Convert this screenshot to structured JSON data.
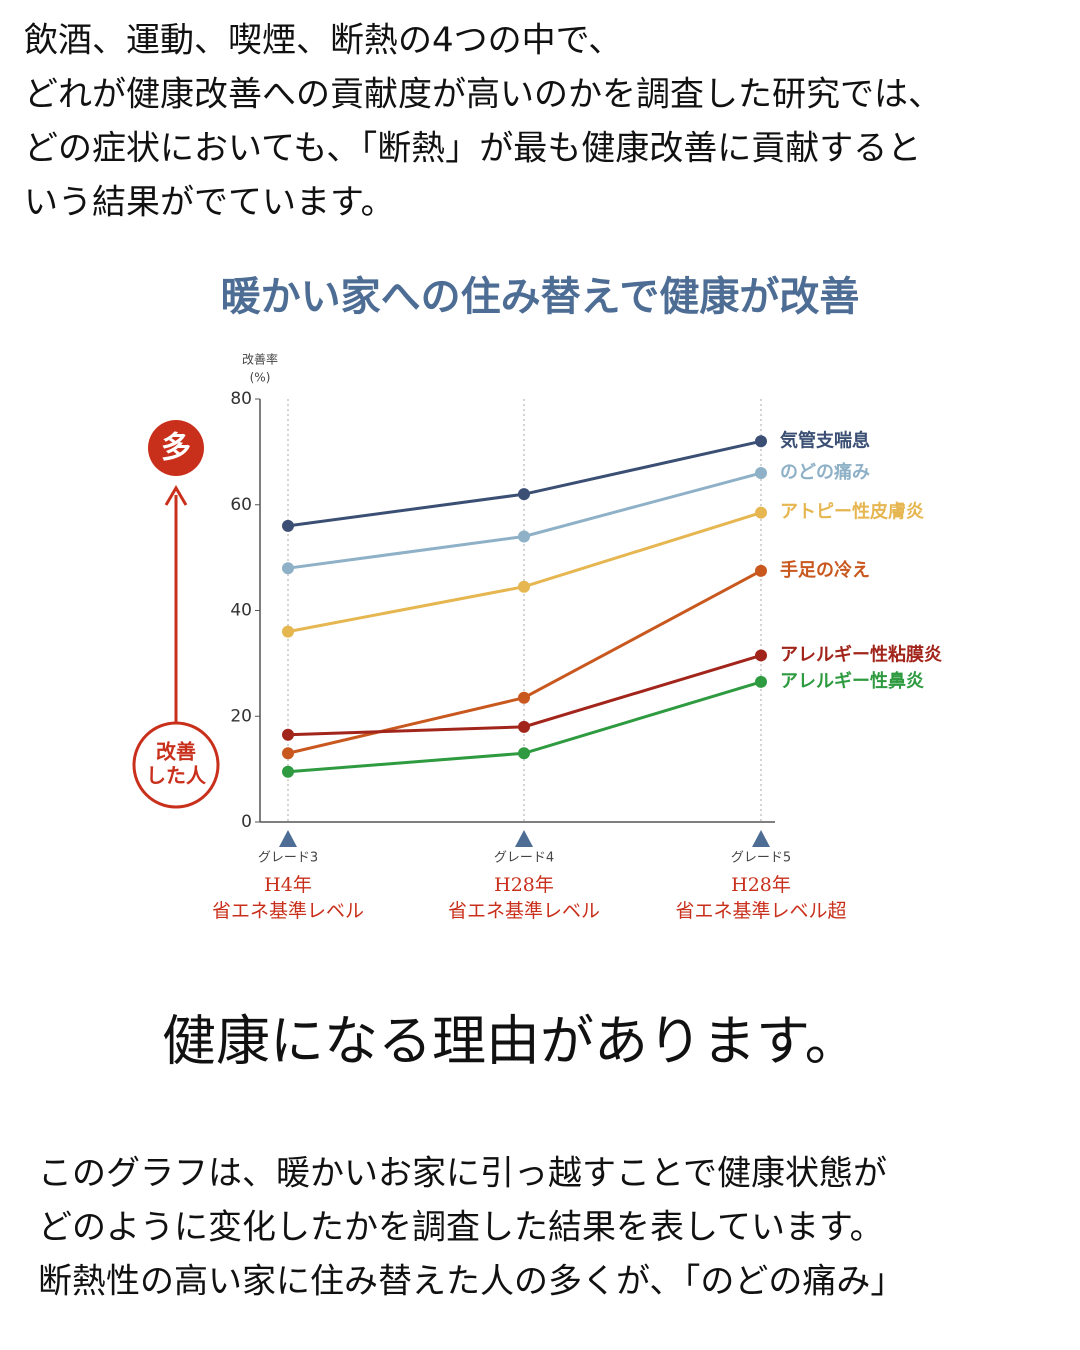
{
  "intro": [
    "飲酒、運動、喫煙、断熱の4つの中で、",
    "どれが健康改善への貢献度が高いのかを調査した研究では、",
    "どの症状においても、「断熱」が最も健康改善に貢献すると",
    "いう結果がでています。"
  ],
  "chart_data": {
    "type": "line",
    "title": "暖かい家への住み替えで健康が改善",
    "y_label": [
      "改善率",
      "(%)"
    ],
    "categories": [
      "グレード3",
      "グレード4",
      "グレード5"
    ],
    "category_sublabels": [
      [
        "H4年",
        "省エネ基準レベル"
      ],
      [
        "H28年",
        "省エネ基準レベル"
      ],
      [
        "H28年",
        "省エネ基準レベル超"
      ]
    ],
    "ylim": [
      0,
      80
    ],
    "yticks": [
      0,
      20,
      40,
      60,
      80
    ],
    "annotations": {
      "top": "多",
      "bottom": [
        "改善",
        "した人"
      ]
    },
    "series": [
      {
        "name": "気管支喘息",
        "color": "#3b4f74",
        "values": [
          56,
          62,
          72
        ]
      },
      {
        "name": "のどの痛み",
        "color": "#8fb1c7",
        "values": [
          48,
          54,
          66
        ]
      },
      {
        "name": "アトピー性皮膚炎",
        "color": "#e6b650",
        "values": [
          36,
          44.5,
          58.5
        ]
      },
      {
        "name": "手足の冷え",
        "color": "#c9581f",
        "values": [
          13,
          23.5,
          47.5
        ]
      },
      {
        "name": "アレルギー性粘膜炎",
        "color": "#a2251b",
        "values": [
          16.5,
          18,
          31.5
        ]
      },
      {
        "name": "アレルギー性鼻炎",
        "color": "#2e9b40",
        "values": [
          9.5,
          13,
          26.5
        ]
      }
    ]
  },
  "heading": "健康になる理由があります。",
  "body": [
    "このグラフは、暖かいお家に引っ越すことで健康状態が",
    "どのように変化したかを調査した結果を表しています。",
    "断熱性の高い家に住み替えた人の多くが、「のどの痛み」"
  ]
}
